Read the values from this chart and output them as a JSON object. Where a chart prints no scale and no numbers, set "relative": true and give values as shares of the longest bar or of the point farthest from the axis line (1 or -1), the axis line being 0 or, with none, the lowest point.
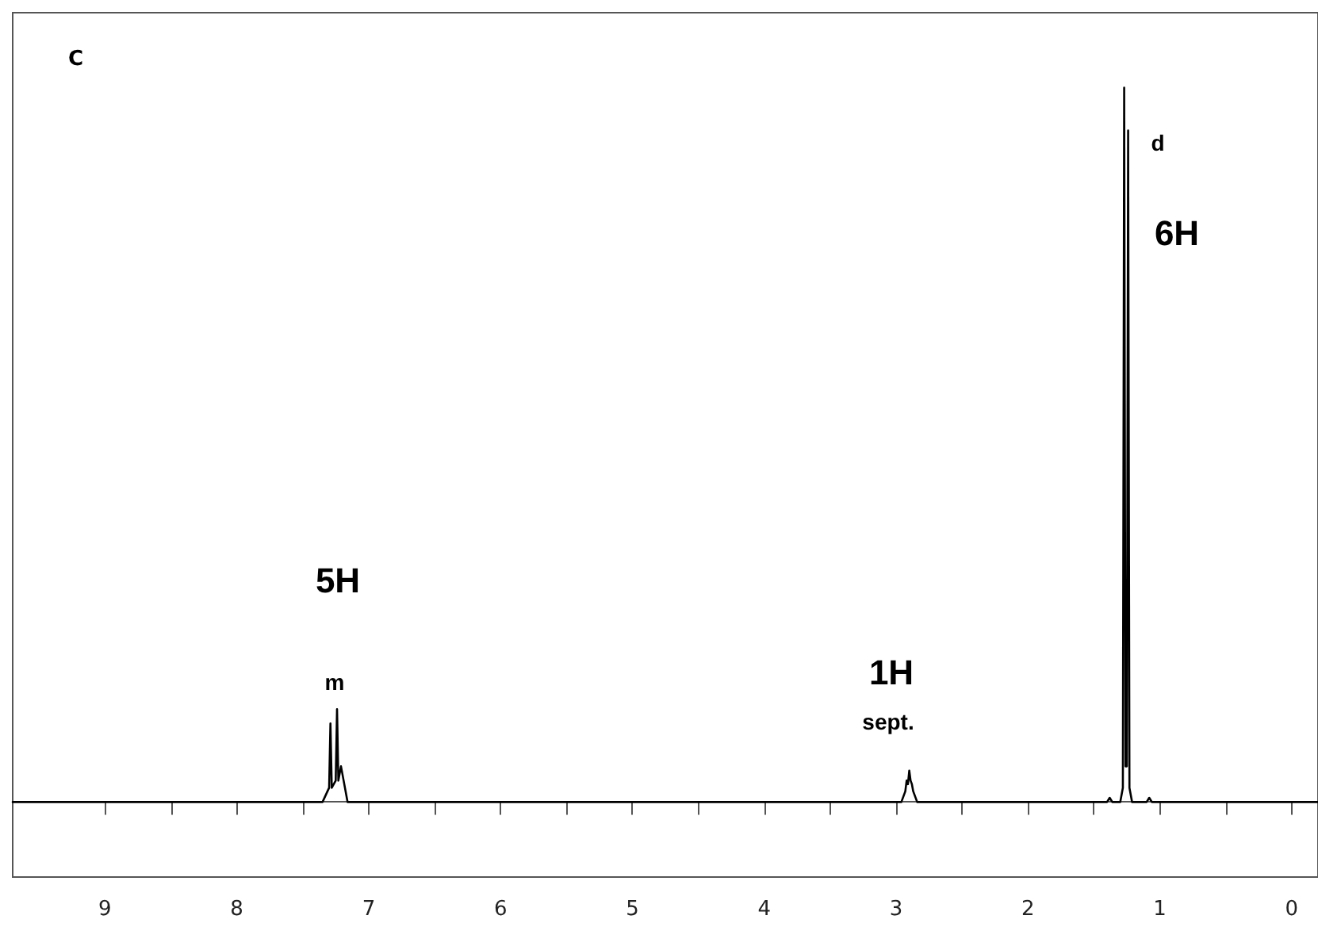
{
  "chart_data": {
    "type": "line",
    "title": "C",
    "relative": true,
    "x": [
      9.7,
      7.35,
      7.3,
      7.29,
      7.28,
      7.25,
      7.24,
      7.23,
      7.21,
      7.19,
      7.16,
      2.96,
      2.93,
      2.92,
      2.91,
      2.9,
      2.89,
      2.88,
      2.87,
      2.84,
      1.4,
      1.38,
      1.36,
      1.3,
      1.28,
      1.27,
      1.26,
      1.25,
      1.24,
      1.23,
      1.21,
      1.1,
      1.08,
      1.06,
      -0.2
    ],
    "series": [
      {
        "color": "#000000",
        "values": [
          0,
          0,
          0.02,
          0.11,
          0.02,
          0.03,
          0.13,
          0.03,
          0.05,
          0.03,
          0,
          0,
          0.015,
          0.03,
          0.025,
          0.044,
          0.03,
          0.025,
          0.015,
          0,
          0,
          0.006,
          0,
          0,
          0.02,
          1.0,
          0.05,
          0.05,
          0.94,
          0.02,
          0,
          0,
          0.006,
          0,
          0
        ]
      }
    ],
    "xlim": [
      9.7,
      -0.2
    ],
    "xticks": [
      9,
      {
        "value": 8.5,
        "label": null
      },
      8,
      {
        "value": 7.5,
        "label": null
      },
      7,
      {
        "value": 6.5,
        "label": null
      },
      6,
      {
        "value": 5.5,
        "label": null
      },
      5,
      {
        "value": 4.5,
        "label": null
      },
      4,
      {
        "value": 3.5,
        "label": null
      },
      3,
      {
        "value": 2.5,
        "label": null
      },
      2,
      {
        "value": 1.5,
        "label": null
      },
      1,
      {
        "value": 0.5,
        "label": null
      },
      0
    ],
    "annotations": [
      "5H",
      "m",
      "1H",
      "sept.",
      "d",
      "6H"
    ],
    "grid": false,
    "marker": "none",
    "line_style": "solid"
  }
}
